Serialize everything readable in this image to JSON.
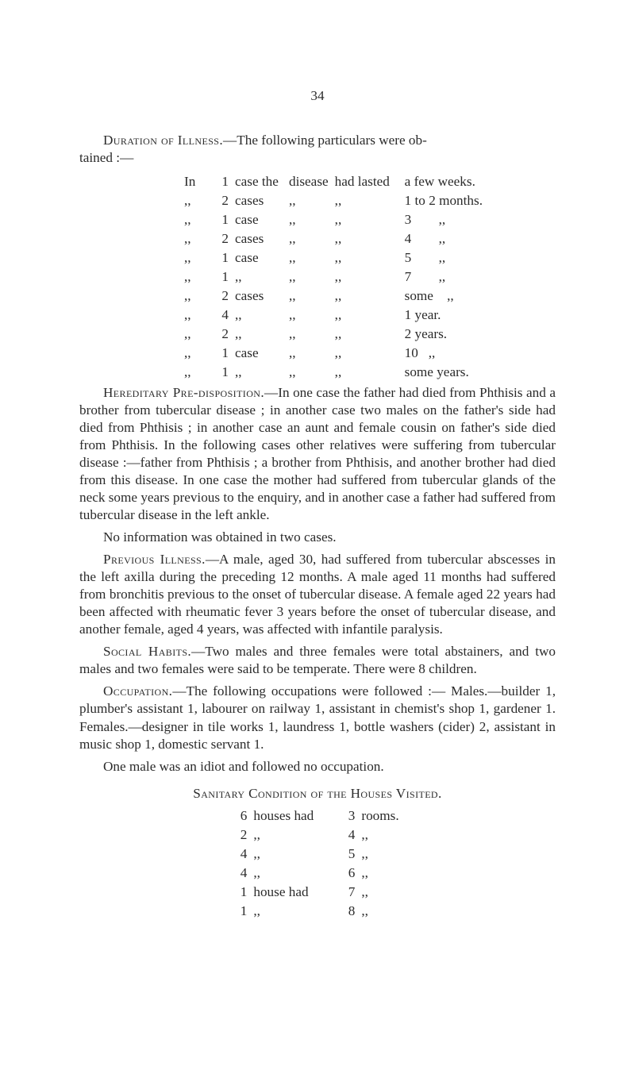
{
  "page_number": "34",
  "duration": {
    "lead_in_a": "Duration of Illness.",
    "lead_in_b": "—The following particulars were ob-",
    "lead_in_c": "tained :—",
    "rows": [
      {
        "c1": "In",
        "c2": "1",
        "c3": "case the",
        "c4": "disease",
        "c5": "had lasted",
        "c6": "a few weeks."
      },
      {
        "c1": ",,",
        "c2": "2",
        "c3": "cases",
        "c4": ",,",
        "c5": ",,",
        "c6": "1 to 2 months."
      },
      {
        "c1": ",,",
        "c2": "1",
        "c3": "case",
        "c4": ",,",
        "c5": ",,",
        "c6": "3        ,,"
      },
      {
        "c1": ",,",
        "c2": "2",
        "c3": "cases",
        "c4": ",,",
        "c5": ",,",
        "c6": "4        ,,"
      },
      {
        "c1": ",,",
        "c2": "1",
        "c3": "case",
        "c4": ",,",
        "c5": ",,",
        "c6": "5        ,,"
      },
      {
        "c1": ",,",
        "c2": "1",
        "c3": ",,",
        "c4": ",,",
        "c5": ",,",
        "c6": "7        ,,"
      },
      {
        "c1": ",,",
        "c2": "2",
        "c3": "cases",
        "c4": ",,",
        "c5": ",,",
        "c6": "some    ,,"
      },
      {
        "c1": ",,",
        "c2": "4",
        "c3": ",,",
        "c4": ",,",
        "c5": ",,",
        "c6": "1 year."
      },
      {
        "c1": ",,",
        "c2": "2",
        "c3": ",,",
        "c4": ",,",
        "c5": ",,",
        "c6": "2 years."
      },
      {
        "c1": ",,",
        "c2": "1",
        "c3": "case",
        "c4": ",,",
        "c5": ",,",
        "c6": "10   ,,"
      },
      {
        "c1": ",,",
        "c2": "1",
        "c3": ",,",
        "c4": ",,",
        "c5": ",,",
        "c6": "some years."
      }
    ]
  },
  "hereditary": {
    "sc": "Hereditary Pre-disposition.",
    "text": "—In one case the father had died from Phthisis and a brother from tubercular disease ; in another case two males on the father's side had died from Phthisis ; in another case an aunt and female cousin on father's side died from Phthisis. In the following cases other relatives were suffering from tubercular disease :—father from Phthisis ; a brother from Phthisis, and another brother had died from this disease. In one case the mother had suffered from tubercular glands of the neck some years previous to the enquiry, and in another case a father had suffered from tubercular disease in the left ankle."
  },
  "no_info": "No information was obtained in two cases.",
  "previous": {
    "sc": "Previous Illness.",
    "text": "—A male, aged 30, had suffered from tubercular abscesses in the left axilla during the preceding 12 months. A male aged 11 months had suffered from bronchitis previous to the onset of tubercular disease. A female aged 22 years had been affected with rheumatic fever 3 years before the onset of tubercular disease, and another female, aged 4 years, was affected with infantile paralysis."
  },
  "social": {
    "sc": "Social Habits.",
    "text": "—Two males and three females were total abstainers, and two males and two females were said to be temperate. There were 8 children."
  },
  "occupation": {
    "sc": "Occupation.",
    "text": "—The following occupations were followed :— Males.—builder 1, plumber's assistant 1, labourer on railway 1, assistant in chemist's shop 1, gardener 1. Females.—designer in tile works 1, laundress 1, bottle washers (cider) 2, assistant in music shop 1, domestic servant 1."
  },
  "one_male": "One male was an idiot and followed no occupation.",
  "sanitary": {
    "title": "Sanitary Condition of the Houses Visited.",
    "rows": [
      {
        "s1": "6",
        "s2": "houses had",
        "s3": "3",
        "s4": "rooms."
      },
      {
        "s1": "2",
        "s2": ",,",
        "s3": "4",
        "s4": ",,"
      },
      {
        "s1": "4",
        "s2": ",,",
        "s3": "5",
        "s4": ",,"
      },
      {
        "s1": "4",
        "s2": ",,",
        "s3": "6",
        "s4": ",,"
      },
      {
        "s1": "1",
        "s2": "house had",
        "s3": "7",
        "s4": ",,"
      },
      {
        "s1": "1",
        "s2": ",,",
        "s3": "8",
        "s4": ",,"
      }
    ]
  }
}
